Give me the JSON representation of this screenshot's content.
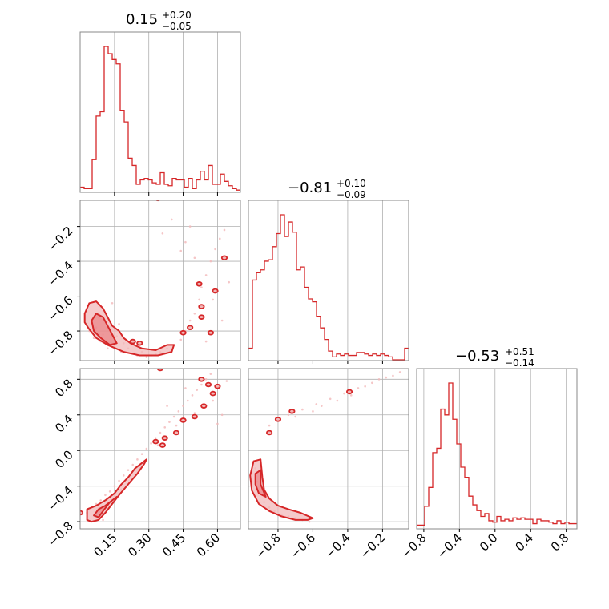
{
  "colors": {
    "accent": "#d62728",
    "fill": "#f2b8b9",
    "grid": "#b0b0b0",
    "frame": "#888888",
    "background": "#ffffff"
  },
  "titles": [
    {
      "main": "0.15",
      "plus": "+0.20",
      "minus": "−0.05"
    },
    {
      "main": "−0.81",
      "plus": "+0.10",
      "minus": "−0.09"
    },
    {
      "main": "−0.53",
      "plus": "+0.51",
      "minus": "−0.14"
    }
  ],
  "chart_data": {
    "type": "corner",
    "parameters": [
      {
        "range": [
          0.0,
          0.7
        ],
        "ticks": [
          0.15,
          0.3,
          0.45,
          0.6
        ],
        "tick_labels": [
          "0.15",
          "0.30",
          "0.45",
          "0.60"
        ]
      },
      {
        "range": [
          -0.97,
          -0.05
        ],
        "ticks": [
          -0.8,
          -0.6,
          -0.4,
          -0.2
        ],
        "tick_labels": [
          "−0.8",
          "−0.6",
          "−0.4",
          "−0.2"
        ]
      },
      {
        "range": [
          -0.88,
          0.92
        ],
        "ticks": [
          -0.8,
          -0.4,
          0.0,
          0.4,
          0.8
        ],
        "tick_labels": [
          "−0.8",
          "−0.4",
          "0.0",
          "0.4",
          "0.8"
        ]
      }
    ],
    "histograms": [
      {
        "parameter": 0,
        "start": 0.0,
        "bin_width": 0.0175,
        "values": [
          0.03,
          0.02,
          0.02,
          0.22,
          0.52,
          0.55,
          1.0,
          0.95,
          0.91,
          0.88,
          0.56,
          0.48,
          0.23,
          0.18,
          0.05,
          0.08,
          0.09,
          0.08,
          0.06,
          0.05,
          0.13,
          0.05,
          0.04,
          0.09,
          0.08,
          0.08,
          0.03,
          0.09,
          0.02,
          0.08,
          0.14,
          0.08,
          0.18,
          0.05,
          0.05,
          0.12,
          0.07,
          0.04,
          0.02,
          0.01
        ]
      },
      {
        "parameter": 1,
        "start": -0.97,
        "bin_width": 0.023,
        "values": [
          0.08,
          0.55,
          0.6,
          0.62,
          0.68,
          0.69,
          0.78,
          0.87,
          1.0,
          0.85,
          0.95,
          0.88,
          0.62,
          0.64,
          0.5,
          0.42,
          0.4,
          0.3,
          0.22,
          0.14,
          0.06,
          0.02,
          0.04,
          0.03,
          0.04,
          0.03,
          0.03,
          0.05,
          0.05,
          0.04,
          0.03,
          0.04,
          0.03,
          0.04,
          0.03,
          0.02,
          0.0,
          0.0,
          0.0,
          0.08
        ]
      },
      {
        "parameter": 2,
        "start": -0.88,
        "bin_width": 0.045,
        "values": [
          0.02,
          0.02,
          0.15,
          0.28,
          0.52,
          0.55,
          0.82,
          0.78,
          1.0,
          0.75,
          0.58,
          0.42,
          0.35,
          0.22,
          0.16,
          0.12,
          0.08,
          0.1,
          0.05,
          0.04,
          0.08,
          0.05,
          0.06,
          0.05,
          0.07,
          0.06,
          0.07,
          0.06,
          0.06,
          0.03,
          0.06,
          0.05,
          0.05,
          0.04,
          0.03,
          0.05,
          0.03,
          0.04,
          0.03,
          0.03
        ]
      }
    ],
    "scatter_2d": [
      {
        "x_param": 0,
        "y_param": 1,
        "points": [
          [
            0.04,
            -0.8
          ],
          [
            0.05,
            -0.74
          ],
          [
            0.06,
            -0.84
          ],
          [
            0.07,
            -0.78
          ],
          [
            0.08,
            -0.72
          ],
          [
            0.09,
            -0.86
          ],
          [
            0.09,
            -0.66
          ],
          [
            0.1,
            -0.82
          ],
          [
            0.11,
            -0.7
          ],
          [
            0.12,
            -0.9
          ],
          [
            0.13,
            -0.78
          ],
          [
            0.14,
            -0.64
          ],
          [
            0.15,
            -0.88
          ],
          [
            0.16,
            -0.83
          ],
          [
            0.17,
            -0.76
          ],
          [
            0.18,
            -0.92
          ],
          [
            0.19,
            -0.87
          ],
          [
            0.21,
            -0.9
          ],
          [
            0.23,
            -0.93
          ],
          [
            0.25,
            -0.94
          ],
          [
            0.27,
            -0.92
          ],
          [
            0.29,
            -0.95
          ],
          [
            0.31,
            -0.94
          ],
          [
            0.33,
            -0.93
          ],
          [
            0.35,
            -0.92
          ],
          [
            0.38,
            -0.9
          ],
          [
            0.41,
            -0.88
          ],
          [
            0.44,
            -0.85
          ],
          [
            0.46,
            -0.8
          ],
          [
            0.48,
            -0.74
          ],
          [
            0.5,
            -0.7
          ],
          [
            0.52,
            -0.62
          ],
          [
            0.53,
            -0.55
          ],
          [
            0.55,
            -0.48
          ],
          [
            0.57,
            -0.4
          ],
          [
            0.59,
            -0.33
          ],
          [
            0.61,
            -0.27
          ],
          [
            0.63,
            -0.22
          ],
          [
            0.48,
            -0.2
          ],
          [
            0.46,
            -0.29
          ],
          [
            0.5,
            -0.38
          ],
          [
            0.58,
            -0.62
          ],
          [
            0.62,
            -0.74
          ],
          [
            0.4,
            -0.16
          ],
          [
            0.36,
            -0.24
          ],
          [
            0.55,
            -0.86
          ],
          [
            0.65,
            -0.52
          ],
          [
            0.44,
            -0.34
          ]
        ]
      },
      {
        "x_param": 0,
        "y_param": 2,
        "points": [
          [
            0.03,
            -0.7
          ],
          [
            0.05,
            -0.64
          ],
          [
            0.07,
            -0.6
          ],
          [
            0.09,
            -0.56
          ],
          [
            0.11,
            -0.5
          ],
          [
            0.13,
            -0.46
          ],
          [
            0.15,
            -0.4
          ],
          [
            0.17,
            -0.34
          ],
          [
            0.19,
            -0.28
          ],
          [
            0.21,
            -0.22
          ],
          [
            0.23,
            -0.16
          ],
          [
            0.25,
            -0.1
          ],
          [
            0.27,
            -0.04
          ],
          [
            0.29,
            0.02
          ],
          [
            0.31,
            0.08
          ],
          [
            0.33,
            0.14
          ],
          [
            0.35,
            0.2
          ],
          [
            0.37,
            0.26
          ],
          [
            0.39,
            0.32
          ],
          [
            0.41,
            0.38
          ],
          [
            0.43,
            0.44
          ],
          [
            0.45,
            0.5
          ],
          [
            0.47,
            0.56
          ],
          [
            0.49,
            0.62
          ],
          [
            0.51,
            0.68
          ],
          [
            0.53,
            0.74
          ],
          [
            0.55,
            0.8
          ],
          [
            0.57,
            0.86
          ],
          [
            0.1,
            -0.78
          ],
          [
            0.18,
            -0.44
          ],
          [
            0.26,
            -0.2
          ],
          [
            0.34,
            0.06
          ],
          [
            0.42,
            0.28
          ],
          [
            0.5,
            0.42
          ],
          [
            0.58,
            0.56
          ],
          [
            0.62,
            0.4
          ],
          [
            0.64,
            0.78
          ],
          [
            0.6,
            0.3
          ],
          [
            0.46,
            0.7
          ],
          [
            0.38,
            0.5
          ]
        ]
      },
      {
        "x_param": 1,
        "y_param": 2,
        "points": [
          [
            -0.93,
            -0.2
          ],
          [
            -0.92,
            -0.35
          ],
          [
            -0.9,
            -0.48
          ],
          [
            -0.88,
            -0.58
          ],
          [
            -0.85,
            -0.64
          ],
          [
            -0.82,
            -0.68
          ],
          [
            -0.78,
            -0.72
          ],
          [
            -0.74,
            -0.74
          ],
          [
            -0.7,
            -0.76
          ],
          [
            -0.66,
            -0.78
          ],
          [
            -0.62,
            -0.8
          ],
          [
            -0.85,
            0.28
          ],
          [
            -0.8,
            0.34
          ],
          [
            -0.74,
            0.4
          ],
          [
            -0.66,
            0.46
          ],
          [
            -0.58,
            0.52
          ],
          [
            -0.5,
            0.58
          ],
          [
            -0.42,
            0.64
          ],
          [
            -0.34,
            0.7
          ],
          [
            -0.26,
            0.76
          ],
          [
            -0.18,
            0.82
          ],
          [
            -0.1,
            0.88
          ],
          [
            -0.7,
            0.38
          ],
          [
            -0.55,
            0.5
          ],
          [
            -0.46,
            0.56
          ],
          [
            -0.38,
            0.62
          ],
          [
            -0.3,
            0.72
          ],
          [
            -0.22,
            0.8
          ],
          [
            -0.14,
            0.84
          ],
          [
            -0.6,
            0.44
          ]
        ]
      }
    ],
    "contours_2d": [
      {
        "x_param": 0,
        "y_param": 1,
        "filled": [
          {
            "level": "outer",
            "pts": [
              [
                0.02,
                -0.7
              ],
              [
                0.04,
                -0.64
              ],
              [
                0.07,
                -0.63
              ],
              [
                0.1,
                -0.67
              ],
              [
                0.12,
                -0.72
              ],
              [
                0.14,
                -0.77
              ],
              [
                0.17,
                -0.8
              ],
              [
                0.19,
                -0.84
              ],
              [
                0.22,
                -0.87
              ],
              [
                0.27,
                -0.9
              ],
              [
                0.33,
                -0.91
              ],
              [
                0.38,
                -0.88
              ],
              [
                0.41,
                -0.88
              ],
              [
                0.4,
                -0.92
              ],
              [
                0.34,
                -0.94
              ],
              [
                0.26,
                -0.94
              ],
              [
                0.19,
                -0.92
              ],
              [
                0.12,
                -0.88
              ],
              [
                0.07,
                -0.84
              ],
              [
                0.04,
                -0.79
              ],
              [
                0.02,
                -0.75
              ]
            ]
          },
          {
            "level": "inner",
            "pts": [
              [
                0.05,
                -0.74
              ],
              [
                0.07,
                -0.7
              ],
              [
                0.1,
                -0.72
              ],
              [
                0.12,
                -0.77
              ],
              [
                0.14,
                -0.82
              ],
              [
                0.16,
                -0.87
              ],
              [
                0.13,
                -0.88
              ],
              [
                0.09,
                -0.84
              ],
              [
                0.06,
                -0.8
              ]
            ]
          }
        ],
        "islands": [
          [
            0.23,
            -0.86
          ],
          [
            0.26,
            -0.87
          ],
          [
            0.45,
            -0.81
          ],
          [
            0.48,
            -0.78
          ],
          [
            0.53,
            -0.72
          ],
          [
            0.53,
            -0.66
          ],
          [
            0.52,
            -0.53
          ],
          [
            0.57,
            -0.81
          ],
          [
            0.59,
            -0.57
          ],
          [
            0.63,
            -0.38
          ],
          [
            0.34,
            -0.04
          ]
        ]
      },
      {
        "x_param": 0,
        "y_param": 2,
        "filled": [
          {
            "level": "outer",
            "pts": [
              [
                0.03,
                -0.78
              ],
              [
                0.03,
                -0.66
              ],
              [
                0.07,
                -0.62
              ],
              [
                0.11,
                -0.56
              ],
              [
                0.15,
                -0.48
              ],
              [
                0.18,
                -0.38
              ],
              [
                0.21,
                -0.3
              ],
              [
                0.24,
                -0.2
              ],
              [
                0.27,
                -0.14
              ],
              [
                0.29,
                -0.1
              ],
              [
                0.28,
                -0.15
              ],
              [
                0.25,
                -0.26
              ],
              [
                0.21,
                -0.38
              ],
              [
                0.17,
                -0.5
              ],
              [
                0.14,
                -0.6
              ],
              [
                0.11,
                -0.7
              ],
              [
                0.08,
                -0.78
              ],
              [
                0.05,
                -0.8
              ]
            ]
          },
          {
            "level": "inner",
            "pts": [
              [
                0.06,
                -0.73
              ],
              [
                0.08,
                -0.66
              ],
              [
                0.11,
                -0.62
              ],
              [
                0.14,
                -0.56
              ],
              [
                0.16,
                -0.52
              ],
              [
                0.13,
                -0.58
              ],
              [
                0.1,
                -0.68
              ],
              [
                0.08,
                -0.75
              ]
            ]
          }
        ],
        "islands": [
          [
            0.0,
            -0.7
          ],
          [
            0.33,
            0.1
          ],
          [
            0.36,
            0.06
          ],
          [
            0.37,
            0.14
          ],
          [
            0.42,
            0.2
          ],
          [
            0.45,
            0.34
          ],
          [
            0.5,
            0.38
          ],
          [
            0.54,
            0.5
          ],
          [
            0.58,
            0.64
          ],
          [
            0.6,
            0.72
          ],
          [
            0.53,
            0.8
          ],
          [
            0.56,
            0.74
          ],
          [
            0.35,
            0.92
          ]
        ]
      },
      {
        "x_param": 1,
        "y_param": 2,
        "filled": [
          {
            "level": "outer",
            "pts": [
              [
                -0.94,
                -0.12
              ],
              [
                -0.9,
                -0.1
              ],
              [
                -0.89,
                -0.3
              ],
              [
                -0.88,
                -0.44
              ],
              [
                -0.85,
                -0.54
              ],
              [
                -0.8,
                -0.62
              ],
              [
                -0.74,
                -0.66
              ],
              [
                -0.67,
                -0.7
              ],
              [
                -0.6,
                -0.76
              ],
              [
                -0.63,
                -0.78
              ],
              [
                -0.7,
                -0.78
              ],
              [
                -0.78,
                -0.74
              ],
              [
                -0.85,
                -0.68
              ],
              [
                -0.91,
                -0.6
              ],
              [
                -0.95,
                -0.45
              ],
              [
                -0.96,
                -0.28
              ]
            ]
          },
          {
            "level": "inner",
            "pts": [
              [
                -0.93,
                -0.26
              ],
              [
                -0.9,
                -0.22
              ],
              [
                -0.9,
                -0.38
              ],
              [
                -0.87,
                -0.52
              ],
              [
                -0.91,
                -0.48
              ],
              [
                -0.93,
                -0.38
              ]
            ]
          }
        ],
        "islands": [
          [
            -0.85,
            0.2
          ],
          [
            -0.8,
            0.35
          ],
          [
            -0.72,
            0.44
          ],
          [
            -0.39,
            0.66
          ]
        ]
      }
    ]
  }
}
